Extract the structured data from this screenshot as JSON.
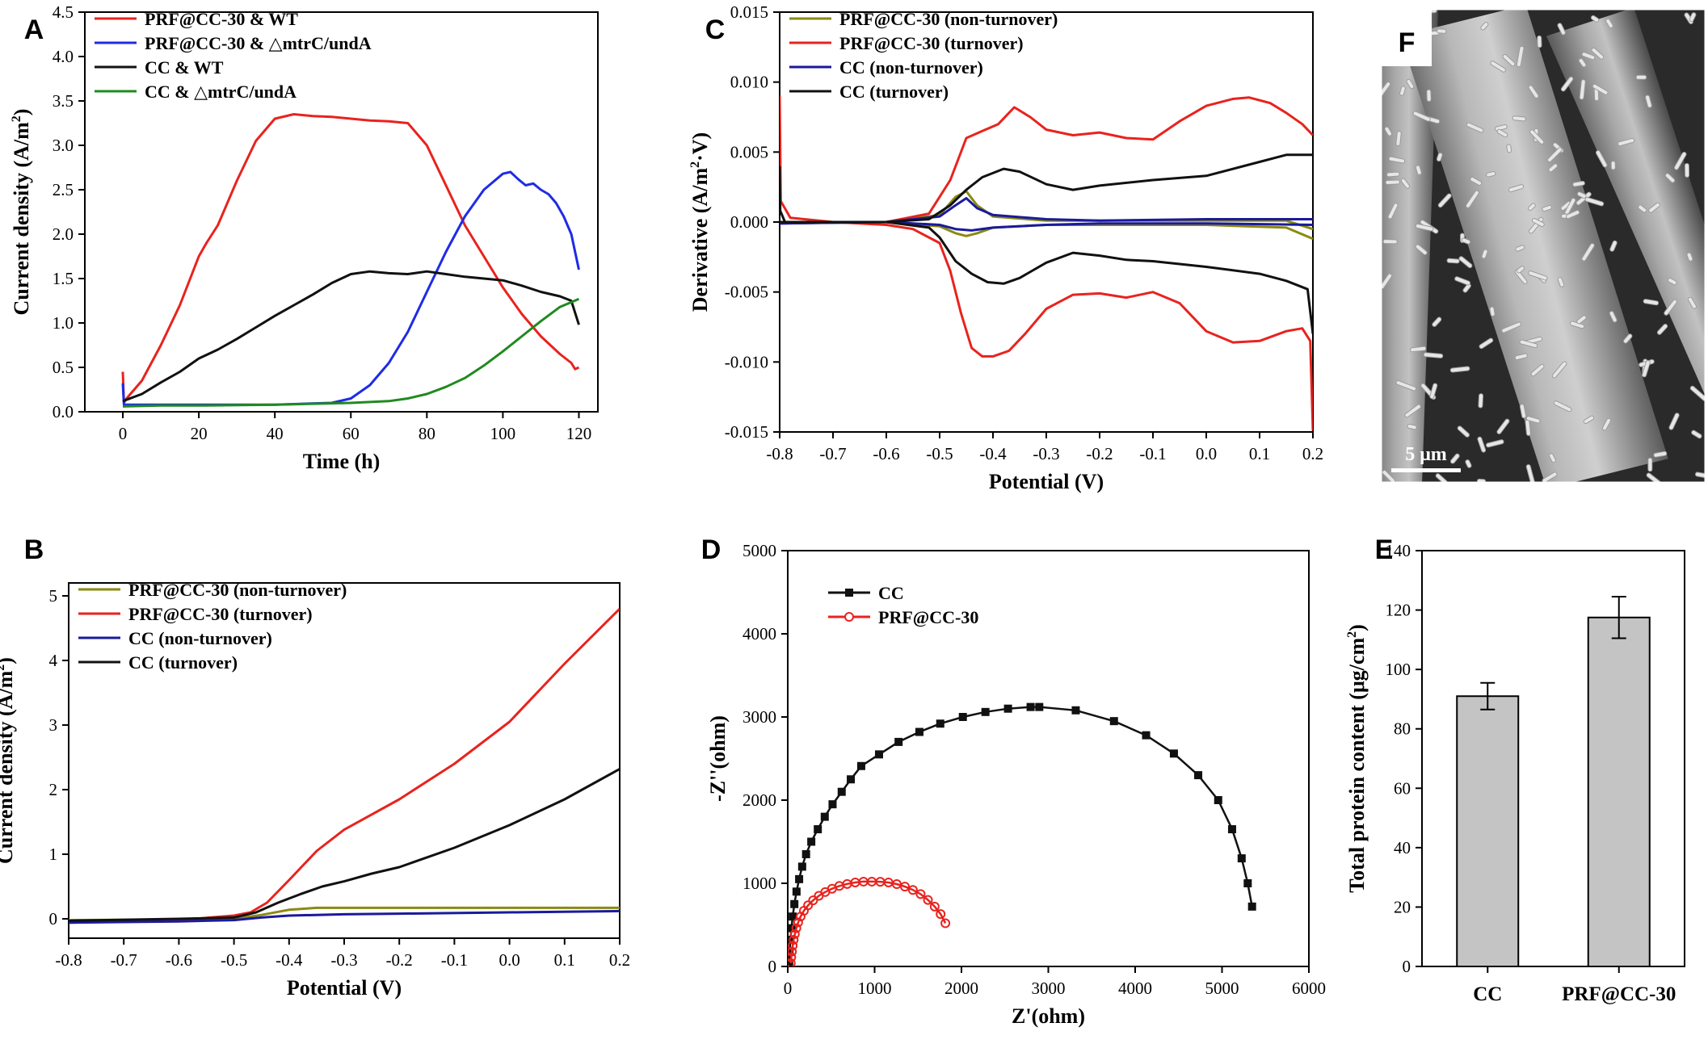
{
  "figure": {
    "scale_bar_label": "5 μm",
    "sem_panel_letter": "F"
  },
  "colors": {
    "red": "#e8231e",
    "blue": "#1f2be6",
    "black": "#111111",
    "green": "#1f8a1f",
    "olive": "#8a8a12",
    "navy": "#1a1a9c",
    "bar_fill": "#c4c4c4"
  },
  "chart_data": [
    {
      "id": "A",
      "type": "line",
      "letter": "A",
      "xlabel": "Time (h)",
      "ylabel": "Current density (A/m²)",
      "xlim": [
        -10,
        125
      ],
      "ylim": [
        0,
        4.5
      ],
      "xticks": [
        0,
        20,
        40,
        60,
        80,
        100,
        120
      ],
      "yticks": [
        0,
        0.5,
        1.0,
        1.5,
        2.0,
        2.5,
        3.0,
        3.5,
        4.0,
        4.5
      ],
      "ytick_labels": [
        "0.0",
        "0.5",
        "1.0",
        "1.5",
        "2.0",
        "2.5",
        "3.0",
        "3.5",
        "4.0",
        "4.5"
      ],
      "legend": "top-left",
      "series": [
        {
          "name": "PRF@CC-30 & WT",
          "color": "red",
          "x": [
            0,
            0.3,
            1,
            5,
            10,
            15,
            20,
            22,
            25,
            30,
            35,
            40,
            45,
            50,
            55,
            60,
            65,
            70,
            75,
            80,
            85,
            90,
            95,
            100,
            105,
            110,
            115,
            118,
            119,
            120
          ],
          "y": [
            0.45,
            0.1,
            0.15,
            0.35,
            0.75,
            1.2,
            1.75,
            1.9,
            2.1,
            2.6,
            3.05,
            3.3,
            3.35,
            3.33,
            3.32,
            3.3,
            3.28,
            3.27,
            3.25,
            3.0,
            2.55,
            2.1,
            1.75,
            1.4,
            1.1,
            0.85,
            0.65,
            0.55,
            0.48,
            0.5
          ]
        },
        {
          "name": "PRF@CC-30 & △mtrC/undA",
          "color": "blue",
          "x": [
            0,
            0.3,
            5,
            20,
            40,
            55,
            60,
            65,
            70,
            75,
            80,
            85,
            90,
            95,
            100,
            102,
            104,
            106,
            108,
            110,
            112,
            114,
            116,
            118,
            120
          ],
          "y": [
            0.32,
            0.08,
            0.08,
            0.08,
            0.08,
            0.1,
            0.15,
            0.3,
            0.55,
            0.9,
            1.35,
            1.8,
            2.2,
            2.5,
            2.68,
            2.7,
            2.62,
            2.55,
            2.57,
            2.5,
            2.45,
            2.35,
            2.2,
            2.0,
            1.6
          ]
        },
        {
          "name": "CC & WT",
          "color": "black",
          "x": [
            0,
            5,
            10,
            15,
            20,
            25,
            30,
            35,
            40,
            45,
            50,
            55,
            60,
            65,
            70,
            75,
            80,
            85,
            90,
            95,
            100,
            105,
            110,
            115,
            118,
            120
          ],
          "y": [
            0.12,
            0.2,
            0.33,
            0.45,
            0.6,
            0.7,
            0.82,
            0.95,
            1.08,
            1.2,
            1.32,
            1.45,
            1.55,
            1.58,
            1.56,
            1.55,
            1.58,
            1.55,
            1.52,
            1.5,
            1.48,
            1.42,
            1.35,
            1.3,
            1.25,
            0.98
          ]
        },
        {
          "name": "CC & △mtrC/undA",
          "color": "green",
          "x": [
            0,
            10,
            20,
            40,
            60,
            70,
            75,
            80,
            85,
            90,
            95,
            100,
            105,
            110,
            115,
            120
          ],
          "y": [
            0.06,
            0.07,
            0.07,
            0.08,
            0.1,
            0.12,
            0.15,
            0.2,
            0.28,
            0.38,
            0.52,
            0.68,
            0.85,
            1.02,
            1.18,
            1.27
          ]
        }
      ]
    },
    {
      "id": "B",
      "type": "line",
      "letter": "B",
      "xlabel": "Potential (V)",
      "ylabel": "Current density (A/m²)",
      "xlim": [
        -0.8,
        0.2
      ],
      "ylim": [
        -0.3,
        5.2
      ],
      "xticks": [
        -0.8,
        -0.7,
        -0.6,
        -0.5,
        -0.4,
        -0.3,
        -0.2,
        -0.1,
        0.0,
        0.1,
        0.2
      ],
      "xtick_labels": [
        "-0.8",
        "-0.7",
        "-0.6",
        "-0.5",
        "-0.4",
        "-0.3",
        "-0.2",
        "-0.1",
        "0.0",
        "0.1",
        "0.2"
      ],
      "yticks": [
        0,
        1,
        2,
        3,
        4,
        5
      ],
      "ytick_labels": [
        "0",
        "1",
        "2",
        "3",
        "4",
        "5"
      ],
      "legend": "top-left",
      "series": [
        {
          "name": "PRF@CC-30 (non-turnover)",
          "color": "olive",
          "x": [
            -0.8,
            -0.6,
            -0.5,
            -0.45,
            -0.4,
            -0.35,
            -0.3,
            -0.2,
            0.0,
            0.2
          ],
          "y": [
            -0.02,
            -0.01,
            0.0,
            0.06,
            0.14,
            0.17,
            0.17,
            0.17,
            0.17,
            0.17
          ]
        },
        {
          "name": "PRF@CC-30 (turnover)",
          "color": "red",
          "x": [
            -0.8,
            -0.6,
            -0.5,
            -0.47,
            -0.44,
            -0.4,
            -0.35,
            -0.3,
            -0.2,
            -0.1,
            0.0,
            0.1,
            0.2
          ],
          "y": [
            -0.06,
            -0.02,
            0.05,
            0.1,
            0.25,
            0.6,
            1.05,
            1.38,
            1.85,
            2.4,
            3.05,
            3.95,
            4.8
          ]
        },
        {
          "name": "CC (non-turnover)",
          "color": "navy",
          "x": [
            -0.8,
            -0.6,
            -0.5,
            -0.45,
            -0.4,
            -0.3,
            -0.2,
            0.0,
            0.2
          ],
          "y": [
            -0.06,
            -0.04,
            -0.02,
            0.02,
            0.05,
            0.07,
            0.08,
            0.1,
            0.12
          ]
        },
        {
          "name": "CC (turnover)",
          "color": "black",
          "x": [
            -0.8,
            -0.6,
            -0.5,
            -0.46,
            -0.42,
            -0.38,
            -0.34,
            -0.3,
            -0.25,
            -0.2,
            -0.1,
            0.0,
            0.1,
            0.2
          ],
          "y": [
            -0.03,
            0.0,
            0.02,
            0.1,
            0.25,
            0.38,
            0.5,
            0.58,
            0.7,
            0.8,
            1.1,
            1.45,
            1.85,
            2.32
          ]
        }
      ]
    },
    {
      "id": "C",
      "type": "line",
      "letter": "C",
      "xlabel": "Potential (V)",
      "ylabel": "Derivative (A/m²·V)",
      "xlim": [
        -0.8,
        0.2
      ],
      "ylim": [
        -0.015,
        0.015
      ],
      "xticks": [
        -0.8,
        -0.7,
        -0.6,
        -0.5,
        -0.4,
        -0.3,
        -0.2,
        -0.1,
        0.0,
        0.1,
        0.2
      ],
      "xtick_labels": [
        "-0.8",
        "-0.7",
        "-0.6",
        "-0.5",
        "-0.4",
        "-0.3",
        "-0.2",
        "-0.1",
        "0.0",
        "0.1",
        "0.2"
      ],
      "yticks": [
        -0.015,
        -0.01,
        -0.005,
        0,
        0.005,
        0.01,
        0.015
      ],
      "ytick_labels": [
        "-0.015",
        "-0.010",
        "-0.005",
        "0.000",
        "0.005",
        "0.010",
        "0.015"
      ],
      "legend": "top-left",
      "series": [
        {
          "name": "PRF@CC-30 (non-turnover)",
          "color": "olive",
          "x": [
            -0.8,
            -0.6,
            -0.5,
            -0.47,
            -0.45,
            -0.43,
            -0.4,
            -0.3,
            0.0,
            0.15,
            0.2
          ],
          "y": [
            0.0,
            0.0,
            0.0005,
            0.0018,
            0.0022,
            0.0012,
            0.0004,
            0.0001,
            0.0001,
            0.0001,
            -0.0005
          ]
        },
        {
          "name": "olive-reverse",
          "color": "olive",
          "legend": false,
          "x": [
            -0.8,
            -0.6,
            -0.5,
            -0.47,
            -0.45,
            -0.43,
            -0.4,
            -0.3,
            0.0,
            0.15,
            0.2
          ],
          "y": [
            0.0,
            0.0,
            -0.0003,
            -0.0008,
            -0.001,
            -0.0008,
            -0.0004,
            -0.0002,
            -0.0002,
            -0.0004,
            -0.0012
          ]
        },
        {
          "name": "PRF@CC-30 (turnover)",
          "color": "red",
          "x": [
            -0.8,
            -0.798,
            -0.78,
            -0.7,
            -0.6,
            -0.52,
            -0.48,
            -0.45,
            -0.42,
            -0.39,
            -0.36,
            -0.33,
            -0.3,
            -0.25,
            -0.2,
            -0.15,
            -0.1,
            -0.05,
            0.0,
            0.05,
            0.08,
            0.12,
            0.15,
            0.18,
            0.2
          ],
          "y": [
            0.009,
            0.0015,
            0.0003,
            0.0,
            0.0,
            0.0006,
            0.003,
            0.006,
            0.0065,
            0.007,
            0.0082,
            0.0075,
            0.0066,
            0.0062,
            0.0064,
            0.006,
            0.0059,
            0.0072,
            0.0083,
            0.0088,
            0.0089,
            0.0085,
            0.0078,
            0.007,
            0.0062
          ]
        },
        {
          "name": "red-reverse",
          "color": "red",
          "legend": false,
          "x": [
            -0.8,
            -0.7,
            -0.6,
            -0.55,
            -0.5,
            -0.48,
            -0.46,
            -0.44,
            -0.42,
            -0.4,
            -0.37,
            -0.34,
            -0.3,
            -0.25,
            -0.2,
            -0.15,
            -0.1,
            -0.05,
            0.0,
            0.05,
            0.1,
            0.15,
            0.18,
            0.195,
            0.2
          ],
          "y": [
            0.0,
            0.0,
            -0.0002,
            -0.0005,
            -0.0015,
            -0.0035,
            -0.0065,
            -0.009,
            -0.0096,
            -0.0096,
            -0.0092,
            -0.008,
            -0.0062,
            -0.0052,
            -0.0051,
            -0.0054,
            -0.005,
            -0.0058,
            -0.0078,
            -0.0086,
            -0.0085,
            -0.0078,
            -0.0076,
            -0.0085,
            -0.0149
          ]
        },
        {
          "name": "CC (non-turnover)",
          "color": "navy",
          "x": [
            -0.8,
            -0.6,
            -0.5,
            -0.47,
            -0.45,
            -0.43,
            -0.4,
            -0.3,
            -0.2,
            0.0,
            0.2
          ],
          "y": [
            -0.0001,
            0.0,
            0.0004,
            0.0012,
            0.0017,
            0.001,
            0.0005,
            0.0002,
            0.0001,
            0.0002,
            0.0002
          ]
        },
        {
          "name": "navy-reverse",
          "color": "navy",
          "legend": false,
          "x": [
            -0.8,
            -0.6,
            -0.5,
            -0.47,
            -0.44,
            -0.4,
            -0.3,
            -0.2,
            0.0,
            0.2
          ],
          "y": [
            -0.0001,
            0.0,
            -0.0002,
            -0.0005,
            -0.0006,
            -0.0004,
            -0.0002,
            -0.0001,
            -0.0001,
            -0.0002
          ]
        },
        {
          "name": "CC (turnover)",
          "color": "black",
          "x": [
            -0.8,
            -0.799,
            -0.79,
            -0.7,
            -0.6,
            -0.52,
            -0.48,
            -0.45,
            -0.42,
            -0.38,
            -0.35,
            -0.3,
            -0.25,
            -0.2,
            -0.1,
            0.0,
            0.1,
            0.15,
            0.18,
            0.2
          ],
          "y": [
            0.004,
            0.0008,
            0.0,
            0.0,
            0.0,
            0.0002,
            0.0012,
            0.0023,
            0.0032,
            0.0038,
            0.0036,
            0.0027,
            0.0023,
            0.0026,
            0.003,
            0.0033,
            0.0043,
            0.0048,
            0.0048,
            0.0048
          ]
        },
        {
          "name": "black-reverse",
          "color": "black",
          "legend": false,
          "x": [
            -0.8,
            -0.7,
            -0.6,
            -0.52,
            -0.5,
            -0.47,
            -0.44,
            -0.41,
            -0.38,
            -0.35,
            -0.3,
            -0.25,
            -0.2,
            -0.15,
            -0.1,
            0.0,
            0.1,
            0.15,
            0.19,
            0.2
          ],
          "y": [
            0.0,
            0.0,
            0.0,
            -0.0004,
            -0.0011,
            -0.0028,
            -0.0037,
            -0.0043,
            -0.0044,
            -0.004,
            -0.0029,
            -0.0022,
            -0.0024,
            -0.0027,
            -0.0028,
            -0.0032,
            -0.0037,
            -0.0042,
            -0.0048,
            -0.008
          ]
        }
      ]
    },
    {
      "id": "D",
      "type": "scatter",
      "letter": "D",
      "xlabel": "Z'(ohm)",
      "ylabel": "-Z''(ohm)",
      "xlim": [
        0,
        6000
      ],
      "ylim": [
        0,
        5000
      ],
      "xticks": [
        0,
        1000,
        2000,
        3000,
        4000,
        5000,
        6000
      ],
      "xtick_labels": [
        "0",
        "1000",
        "2000",
        "3000",
        "4000",
        "5000",
        "6000"
      ],
      "yticks": [
        0,
        1000,
        2000,
        3000,
        4000,
        5000
      ],
      "ytick_labels": [
        "0",
        "1000",
        "2000",
        "3000",
        "4000",
        "5000"
      ],
      "legend": "top-left",
      "series": [
        {
          "name": "CC",
          "color": "black",
          "marker": "square",
          "x": [
            16,
            21,
            31,
            43,
            57,
            76,
            101,
            131,
            166,
            211,
            271,
            346,
            426,
            516,
            621,
            726,
            846,
            1051,
            1276,
            1516,
            1756,
            2016,
            2276,
            2536,
            2796,
            2896,
            3316,
            3756,
            4126,
            4446,
            4726,
            4956,
            5116,
            5226,
            5296,
            5346
          ],
          "y": [
            30,
            180,
            320,
            460,
            600,
            750,
            900,
            1050,
            1200,
            1350,
            1500,
            1650,
            1800,
            1950,
            2100,
            2250,
            2410,
            2550,
            2700,
            2820,
            2920,
            3000,
            3060,
            3100,
            3120,
            3120,
            3080,
            2950,
            2780,
            2560,
            2300,
            2000,
            1650,
            1300,
            1000,
            720
          ]
        },
        {
          "name": "PRF@CC-30",
          "color": "red",
          "marker": "circle",
          "x": [
            35,
            40,
            48,
            57,
            68,
            82,
            99,
            120,
            148,
            186,
            234,
            292,
            358,
            432,
            510,
            594,
            684,
            777,
            872,
            968,
            1065,
            1160,
            1255,
            1349,
            1441,
            1530,
            1614,
            1692,
            1760,
            1815
          ],
          "y": [
            40,
            110,
            180,
            250,
            320,
            390,
            460,
            530,
            600,
            670,
            735,
            795,
            850,
            895,
            935,
            968,
            992,
            1010,
            1020,
            1020,
            1018,
            1010,
            990,
            960,
            920,
            870,
            800,
            720,
            630,
            520
          ]
        }
      ]
    },
    {
      "id": "E",
      "type": "bar",
      "letter": "E",
      "xlabel": "",
      "ylabel": "Total protein content (μg/cm²)",
      "categories": [
        "CC",
        "PRF@CC-30"
      ],
      "values": [
        91,
        117.5
      ],
      "errors": [
        4.5,
        7
      ],
      "ylim": [
        0,
        140
      ],
      "yticks": [
        0,
        20,
        40,
        60,
        80,
        100,
        120,
        140
      ],
      "ytick_labels": [
        "0",
        "20",
        "40",
        "60",
        "80",
        "100",
        "120",
        "140"
      ]
    }
  ]
}
